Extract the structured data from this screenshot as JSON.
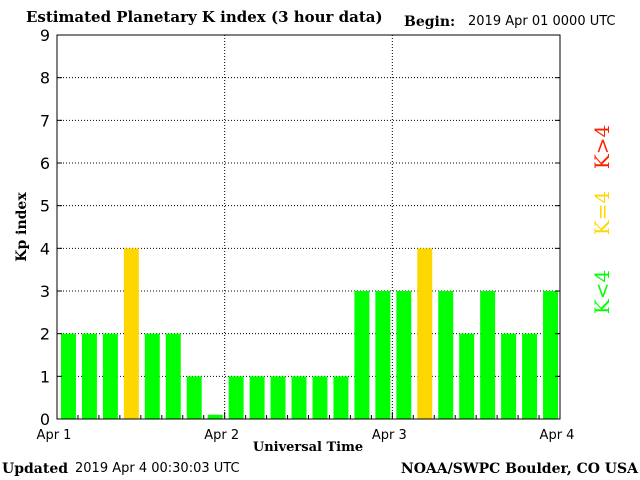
{
  "header": {
    "title": "Estimated Planetary K index (3 hour data)",
    "begin_label": "Begin:",
    "begin_value": "2019 Apr 01 0000 UTC"
  },
  "footer": {
    "updated_label": "Updated",
    "updated_value": "2019 Apr  4 00:30:03 UTC",
    "credit": "NOAA/SWPC Boulder, CO USA"
  },
  "legend": {
    "low": "K<4",
    "equal": "K=4",
    "high": "K>4"
  },
  "colors": {
    "low": "#00ff00",
    "equal": "#ffd700",
    "high": "#ff2000",
    "frame": "#000000",
    "grid": "#000000"
  },
  "chart_data": {
    "type": "bar",
    "title": "Estimated Planetary K index (3 hour data)",
    "xlabel": "Universal Time",
    "ylabel": "Kp index",
    "ylim": [
      0,
      9
    ],
    "yticks": [
      "0",
      "1",
      "2",
      "3",
      "4",
      "5",
      "6",
      "7",
      "8",
      "9"
    ],
    "xticks": [
      "Apr 1",
      "Apr 2",
      "Apr 3",
      "Apr 4"
    ],
    "grid": true,
    "interval_hours": 3,
    "values": [
      2,
      2,
      2,
      4,
      2,
      2,
      1,
      0.1,
      1,
      1,
      1,
      1,
      1,
      1,
      3,
      3,
      3,
      4,
      3,
      2,
      3,
      2,
      2,
      3
    ]
  }
}
